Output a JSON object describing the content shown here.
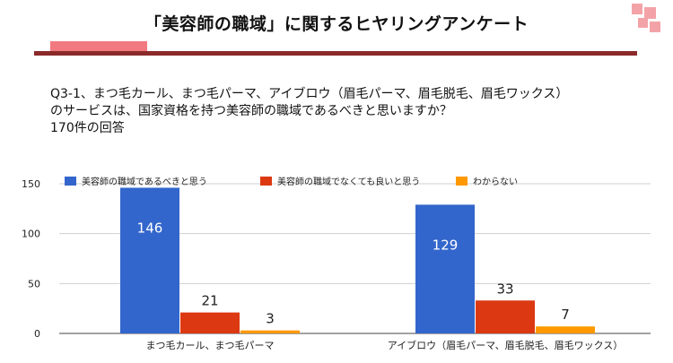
{
  "slide": {
    "title": "「美容師の職域」に関するヒヤリングアンケート",
    "question_line1": "Q3-1、まつ毛カール、まつ毛パーマ、アイブロウ（眉毛パーマ、眉毛脱毛、眉毛ワックス）",
    "question_line2": "のサービスは、国家資格を持つ美容師の職域であるべきと思いますか？",
    "response_count": "170件の回答",
    "accent_color": "#8b2a2a"
  },
  "chart_data": {
    "type": "bar",
    "categories": [
      "まつ毛カール、まつ毛パーマ",
      "アイブロウ（眉毛パーマ、眉毛脱毛、眉毛ワックス）"
    ],
    "series": [
      {
        "name": "美容師の職域であるべきと思う",
        "values": [
          146,
          129
        ],
        "color": "#3366cc"
      },
      {
        "name": "美容師の職域でなくても良いと思う",
        "values": [
          21,
          33
        ],
        "color": "#dc3912"
      },
      {
        "name": "わからない",
        "values": [
          3,
          7
        ],
        "color": "#ff9900"
      }
    ],
    "yticks": [
      0,
      50,
      100,
      150
    ],
    "ylim": [
      0,
      150
    ],
    "legend": "top",
    "grid": true
  }
}
